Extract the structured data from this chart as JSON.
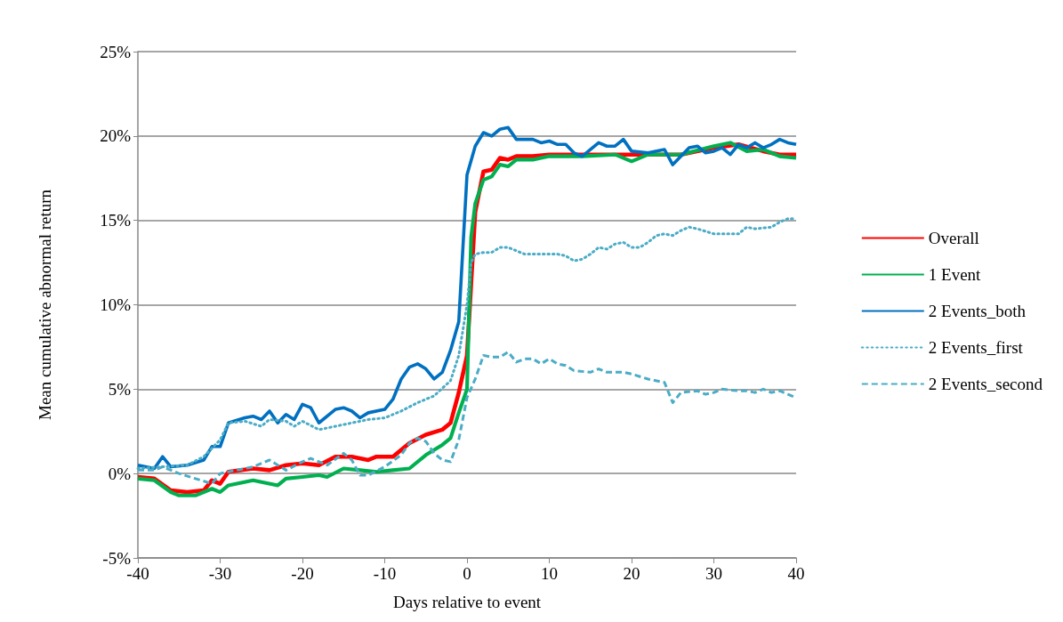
{
  "chart_data": {
    "type": "line",
    "xlabel": "Days relative to event",
    "ylabel": "Mean cumulative abnormal return",
    "xlim": [
      -40,
      40
    ],
    "xticks": [
      -40,
      -30,
      -20,
      -10,
      0,
      10,
      20,
      30,
      40
    ],
    "ylim": [
      -5,
      25
    ],
    "yticks": [
      {
        "value": -5,
        "label": "-5%"
      },
      {
        "value": 0,
        "label": "0%"
      },
      {
        "value": 5,
        "label": "5%"
      },
      {
        "value": 10,
        "label": "10%"
      },
      {
        "value": 15,
        "label": "15%"
      },
      {
        "value": 20,
        "label": "20%"
      },
      {
        "value": 25,
        "label": "25%"
      }
    ],
    "grid": "y",
    "legend": "right",
    "marker": "none",
    "series": [
      {
        "name": "Overall",
        "color": "#ff0000",
        "line_style": "solid",
        "x": [
          -40,
          -38,
          -36,
          -34,
          -32,
          -31,
          -30,
          -29,
          -26,
          -24,
          -22,
          -20,
          -18,
          -16,
          -14,
          -12,
          -11,
          -9,
          -7,
          -5,
          -3,
          -2,
          -1,
          0,
          1,
          2,
          3,
          4,
          5,
          6,
          8,
          10,
          14,
          20,
          26,
          30,
          33,
          36,
          38,
          40
        ],
        "values": [
          -0.2,
          -0.3,
          -1.0,
          -1.1,
          -1.0,
          -0.4,
          -0.6,
          0.1,
          0.3,
          0.2,
          0.5,
          0.6,
          0.5,
          1.0,
          1.0,
          0.8,
          1.0,
          1.0,
          1.8,
          2.3,
          2.6,
          3.0,
          4.8,
          7,
          15.5,
          17.9,
          18.0,
          18.7,
          18.6,
          18.8,
          18.8,
          18.9,
          18.9,
          18.9,
          18.9,
          19.3,
          19.5,
          19.1,
          18.9,
          18.9
        ]
      },
      {
        "name": "1 Event",
        "color": "#00b050",
        "line_style": "solid",
        "x": [
          -40,
          -38,
          -36,
          -35,
          -33,
          -31,
          -30,
          -29,
          -26,
          -23,
          -22,
          -20,
          -18,
          -17,
          -15,
          -13,
          -11,
          -9,
          -7,
          -5,
          -3,
          -2,
          -1,
          0,
          0.5,
          1,
          2,
          3,
          4,
          5,
          6,
          8,
          10,
          14,
          18,
          20,
          22,
          26,
          30,
          32,
          34,
          36,
          38,
          40
        ],
        "values": [
          -0.3,
          -0.4,
          -1.1,
          -1.3,
          -1.3,
          -0.9,
          -1.1,
          -0.7,
          -0.4,
          -0.7,
          -0.3,
          -0.2,
          -0.1,
          -0.2,
          0.3,
          0.2,
          0.1,
          0.2,
          0.3,
          1.1,
          1.7,
          2.1,
          3.6,
          5,
          14,
          16.0,
          17.4,
          17.6,
          18.3,
          18.2,
          18.6,
          18.6,
          18.8,
          18.8,
          18.9,
          18.5,
          18.9,
          18.9,
          19.4,
          19.6,
          19.1,
          19.2,
          18.8,
          18.7
        ]
      },
      {
        "name": "2 Events_both",
        "color": "#0070c0",
        "line_style": "solid",
        "x": [
          -40,
          -38,
          -37,
          -36,
          -34,
          -32,
          -31,
          -30,
          -29,
          -27,
          -26,
          -25,
          -24,
          -23,
          -22,
          -21,
          -20,
          -19,
          -18,
          -16,
          -15,
          -14,
          -13,
          -12,
          -10,
          -9,
          -8,
          -7,
          -6,
          -5,
          -4,
          -3,
          -2,
          -1,
          0,
          1,
          2,
          3,
          4,
          5,
          6,
          8,
          9,
          10,
          11,
          12,
          13,
          14,
          16,
          17,
          18,
          19,
          20,
          22,
          24,
          25,
          27,
          28,
          29,
          30,
          31,
          32,
          33,
          34,
          35,
          36,
          37,
          38,
          39,
          40
        ],
        "values": [
          0.5,
          0.3,
          1.0,
          0.4,
          0.5,
          0.8,
          1.6,
          1.6,
          3.0,
          3.3,
          3.4,
          3.2,
          3.7,
          3.0,
          3.5,
          3.2,
          4.1,
          3.9,
          3.0,
          3.8,
          3.9,
          3.7,
          3.3,
          3.6,
          3.8,
          4.4,
          5.6,
          6.3,
          6.5,
          6.2,
          5.6,
          6.0,
          7.3,
          9.0,
          17.7,
          19.4,
          20.2,
          20.0,
          20.4,
          20.5,
          19.8,
          19.8,
          19.6,
          19.7,
          19.5,
          19.5,
          19.0,
          18.8,
          19.6,
          19.4,
          19.4,
          19.8,
          19.1,
          19.0,
          19.2,
          18.3,
          19.3,
          19.4,
          19.0,
          19.1,
          19.3,
          18.9,
          19.5,
          19.3,
          19.6,
          19.3,
          19.5,
          19.8,
          19.6,
          19.5
        ]
      },
      {
        "name": "2 Events_first",
        "color": "#4bacc6",
        "line_style": "dotted",
        "x": [
          -40,
          -37,
          -34,
          -32,
          -30,
          -29,
          -27,
          -25,
          -24,
          -22,
          -21,
          -20,
          -18,
          -16,
          -14,
          -12,
          -10,
          -8,
          -6,
          -4,
          -2,
          -1,
          0,
          0.5,
          1,
          2,
          3,
          4,
          5,
          6,
          7,
          9,
          11,
          12,
          13,
          14,
          15,
          16,
          17,
          18,
          19,
          20,
          21,
          22,
          23,
          24,
          25,
          26,
          27,
          28,
          30,
          31,
          33,
          34,
          35,
          37,
          38,
          39,
          40
        ],
        "values": [
          0.3,
          0.4,
          0.5,
          1.0,
          2.0,
          3.0,
          3.1,
          2.8,
          3.2,
          3.1,
          2.8,
          3.1,
          2.6,
          2.8,
          3.0,
          3.2,
          3.3,
          3.7,
          4.2,
          4.6,
          5.5,
          7,
          10,
          12.5,
          13.0,
          13.1,
          13.1,
          13.4,
          13.4,
          13.2,
          13.0,
          13.0,
          13.0,
          12.9,
          12.6,
          12.7,
          13.0,
          13.4,
          13.3,
          13.6,
          13.7,
          13.4,
          13.4,
          13.7,
          14.1,
          14.2,
          14.1,
          14.4,
          14.6,
          14.5,
          14.2,
          14.2,
          14.2,
          14.6,
          14.5,
          14.6,
          14.9,
          15.1,
          15.1
        ]
      },
      {
        "name": "2 Events_second",
        "color": "#4bacc6",
        "line_style": "dashed",
        "x": [
          -40,
          -38,
          -37,
          -35,
          -33,
          -31,
          -30,
          -28,
          -26,
          -24,
          -22,
          -20,
          -19,
          -18,
          -17,
          -15,
          -14,
          -13,
          -12,
          -10,
          -8,
          -7,
          -6,
          -5,
          -4,
          -3,
          -2,
          -1,
          0,
          1,
          2,
          3,
          4,
          5,
          6,
          7,
          8,
          9,
          10,
          11,
          12,
          13,
          15,
          16,
          17,
          19,
          20,
          22,
          24,
          25,
          26,
          28,
          29,
          30,
          31,
          33,
          34,
          35,
          36,
          37,
          38,
          39,
          40
        ],
        "values": [
          0.2,
          0.2,
          0.4,
          0.0,
          -0.3,
          -0.6,
          0.0,
          0.2,
          0.4,
          0.8,
          0.2,
          0.7,
          0.9,
          0.7,
          0.5,
          1.2,
          0.8,
          -0.1,
          -0.1,
          0.4,
          1.1,
          1.8,
          2.1,
          1.9,
          1.2,
          0.8,
          0.7,
          2.0,
          4.5,
          5.6,
          7.0,
          6.9,
          6.9,
          7.2,
          6.6,
          6.8,
          6.8,
          6.5,
          6.8,
          6.5,
          6.4,
          6.1,
          6.0,
          6.2,
          6.0,
          6.0,
          5.9,
          5.6,
          5.4,
          4.2,
          4.8,
          4.9,
          4.7,
          4.8,
          5.0,
          4.9,
          4.9,
          4.8,
          5.0,
          4.8,
          4.9,
          4.7,
          4.5
        ]
      }
    ]
  }
}
